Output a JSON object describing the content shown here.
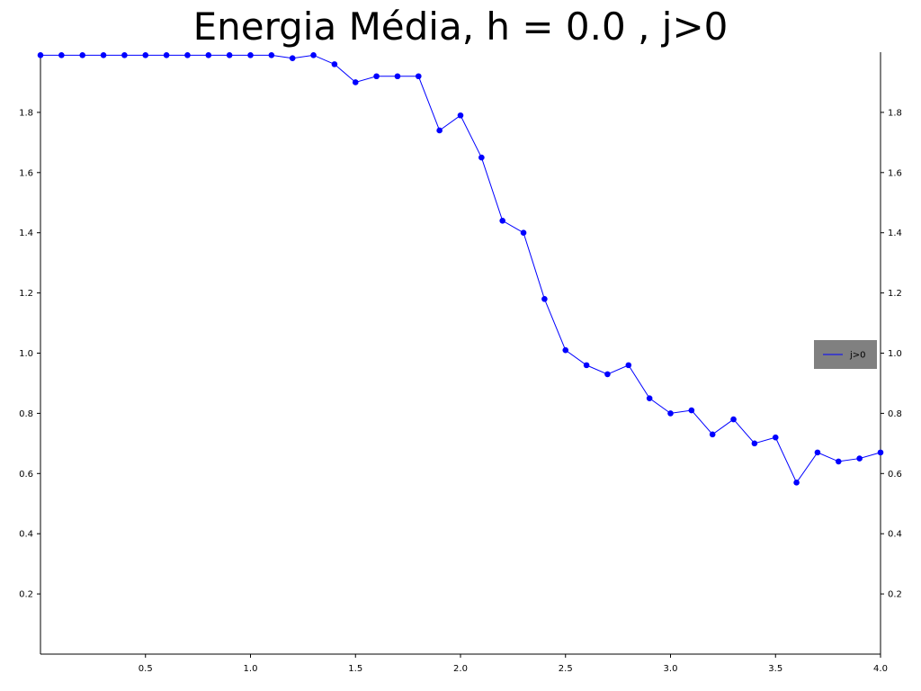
{
  "chart_data": {
    "type": "line",
    "title": "Energia Média, h = 0.0 , j>0",
    "xlabel": "",
    "ylabel": "",
    "xlim": [
      0,
      4.0
    ],
    "ylim": [
      0,
      2.0
    ],
    "x_ticks": [
      0.5,
      1.0,
      1.5,
      2.0,
      2.5,
      3.0,
      3.5,
      4.0
    ],
    "x_tick_labels": [
      "0.5",
      "1.0",
      "1.5",
      "2.0",
      "2.5",
      "3.0",
      "3.5",
      "4.0"
    ],
    "y_ticks": [
      0.2,
      0.4,
      0.6,
      0.8,
      1.0,
      1.2,
      1.4,
      1.6,
      1.8
    ],
    "y_tick_labels": [
      "0.2",
      "0.4",
      "0.6",
      "0.8",
      "1.0",
      "1.2",
      "1.4",
      "1.6",
      "1.8"
    ],
    "grid": false,
    "legend_position": "right",
    "series": [
      {
        "name": "j>0",
        "color": "#0000ff",
        "marker": "circle",
        "x": [
          0.0,
          0.1,
          0.2,
          0.3,
          0.4,
          0.5,
          0.6,
          0.7,
          0.8,
          0.9,
          1.0,
          1.1,
          1.2,
          1.3,
          1.4,
          1.5,
          1.6,
          1.7,
          1.8,
          1.9,
          2.0,
          2.1,
          2.2,
          2.3,
          2.4,
          2.5,
          2.6,
          2.7,
          2.8,
          2.9,
          3.0,
          3.1,
          3.2,
          3.3,
          3.4,
          3.5,
          3.6,
          3.7,
          3.8,
          3.9,
          4.0
        ],
        "y": [
          1.99,
          1.99,
          1.99,
          1.99,
          1.99,
          1.99,
          1.99,
          1.99,
          1.99,
          1.99,
          1.99,
          1.99,
          1.98,
          1.99,
          1.96,
          1.9,
          1.92,
          1.92,
          1.92,
          1.74,
          1.79,
          1.65,
          1.44,
          1.4,
          1.18,
          1.01,
          0.96,
          0.93,
          0.96,
          0.85,
          0.8,
          0.81,
          0.73,
          0.78,
          0.7,
          0.72,
          0.57,
          0.67,
          0.64,
          0.65,
          0.67
        ]
      }
    ]
  }
}
